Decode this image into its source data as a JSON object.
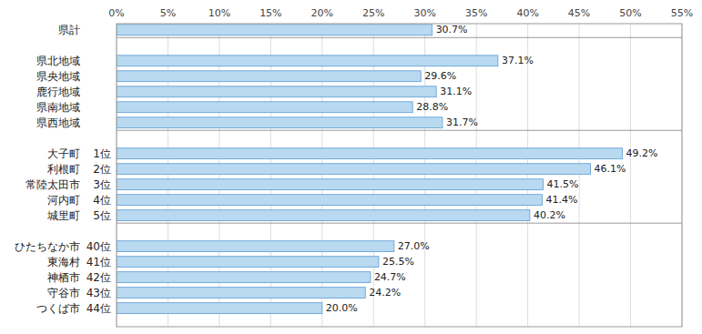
{
  "chart_data": {
    "type": "bar",
    "orientation": "horizontal",
    "categories": [
      "県計",
      null,
      "県北地域",
      "県央地域",
      "鹿行地域",
      "県南地域",
      "県西地域",
      null,
      "大子町",
      "利根町",
      "常陸太田市",
      "河内町",
      "城里町",
      null,
      "ひたちなか市",
      "東海村",
      "神栖市",
      "守谷市",
      "つくば市"
    ],
    "annotations": [
      null,
      null,
      null,
      null,
      null,
      null,
      null,
      null,
      "1位",
      "2位",
      "3位",
      "4位",
      "5位",
      null,
      "40位",
      "41位",
      "42位",
      "43位",
      "44位"
    ],
    "values": [
      30.7,
      null,
      37.1,
      29.6,
      31.1,
      28.8,
      31.7,
      null,
      49.2,
      46.1,
      41.5,
      41.4,
      40.2,
      null,
      27.0,
      25.5,
      24.7,
      24.2,
      20.0
    ],
    "value_labels": [
      "30.7%",
      null,
      "37.1%",
      "29.6%",
      "31.1%",
      "28.8%",
      "31.7%",
      null,
      "49.2%",
      "46.1%",
      "41.5%",
      "41.4%",
      "40.2%",
      null,
      "27.0%",
      "25.5%",
      "24.7%",
      "24.2%",
      "20.0%"
    ],
    "data_labels": true,
    "color": "#b8d9f0",
    "xlim": [
      0,
      55
    ],
    "xticks": [
      {
        "value": 0,
        "label": "0%"
      },
      {
        "value": 5,
        "label": "5%"
      },
      {
        "value": 10,
        "label": "10%"
      },
      {
        "value": 15,
        "label": "15%"
      },
      {
        "value": 20,
        "label": "20%"
      },
      {
        "value": 25,
        "label": "25%"
      },
      {
        "value": 30,
        "label": "30%"
      },
      {
        "value": 35,
        "label": "35%"
      },
      {
        "value": 40,
        "label": "40%"
      },
      {
        "value": 45,
        "label": "45%"
      },
      {
        "value": 50,
        "label": "50%"
      },
      {
        "value": 55,
        "label": "55%"
      }
    ],
    "grid": true
  }
}
